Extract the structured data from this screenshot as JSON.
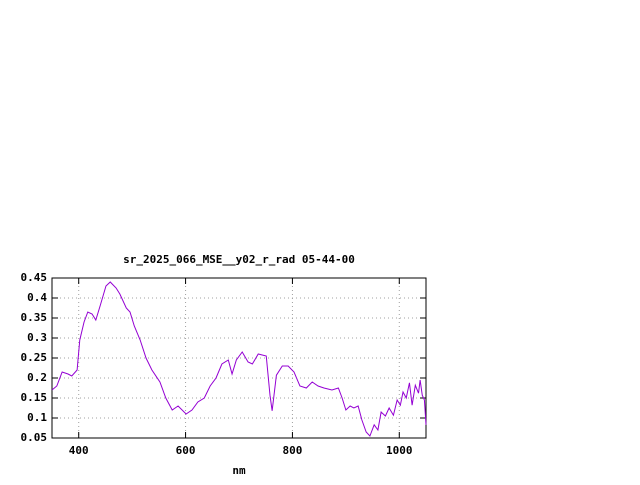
{
  "chart_data": {
    "type": "line",
    "title": "sr_2025_066_MSE__y02_r_rad 05-44-00",
    "x_label": "nm",
    "xlim": [
      350,
      1050
    ],
    "xticks": [
      400,
      600,
      800,
      1000
    ],
    "ylim": [
      0.05,
      0.45
    ],
    "yticks": [
      0.05,
      0.1,
      0.15,
      0.2,
      0.25,
      0.3,
      0.35,
      0.4,
      0.45
    ],
    "grid": true,
    "series": [
      {
        "color": "#9400d3",
        "x": [
          350,
          359,
          369,
          380,
          387,
          397,
          402,
          410,
          417,
          425,
          432,
          440,
          451,
          459,
          470,
          477,
          489,
          496,
          504,
          515,
          526,
          537,
          552,
          563,
          575,
          586,
          601,
          612,
          623,
          635,
          646,
          657,
          668,
          680,
          687,
          695,
          706,
          717,
          725,
          736,
          751,
          758,
          762,
          770,
          781,
          792,
          803,
          814,
          826,
          837,
          848,
          859,
          874,
          886,
          893,
          900,
          908,
          915,
          923,
          930,
          938,
          945,
          953,
          960,
          966,
          974,
          981,
          989,
          996,
          1002,
          1007,
          1013,
          1019,
          1024,
          1030,
          1036,
          1039,
          1043,
          1047,
          1050
        ],
        "values": [
          0.17,
          0.18,
          0.215,
          0.21,
          0.205,
          0.22,
          0.295,
          0.34,
          0.365,
          0.36,
          0.345,
          0.38,
          0.43,
          0.44,
          0.425,
          0.41,
          0.375,
          0.365,
          0.33,
          0.295,
          0.25,
          0.22,
          0.19,
          0.15,
          0.12,
          0.13,
          0.11,
          0.12,
          0.14,
          0.15,
          0.18,
          0.2,
          0.235,
          0.245,
          0.21,
          0.245,
          0.265,
          0.24,
          0.235,
          0.26,
          0.255,
          0.157,
          0.118,
          0.207,
          0.23,
          0.23,
          0.215,
          0.18,
          0.175,
          0.19,
          0.18,
          0.175,
          0.17,
          0.175,
          0.15,
          0.12,
          0.13,
          0.125,
          0.13,
          0.095,
          0.065,
          0.055,
          0.083,
          0.07,
          0.115,
          0.105,
          0.125,
          0.107,
          0.145,
          0.132,
          0.165,
          0.15,
          0.188,
          0.132,
          0.182,
          0.162,
          0.195,
          0.157,
          0.145,
          0.083
        ]
      }
    ]
  }
}
